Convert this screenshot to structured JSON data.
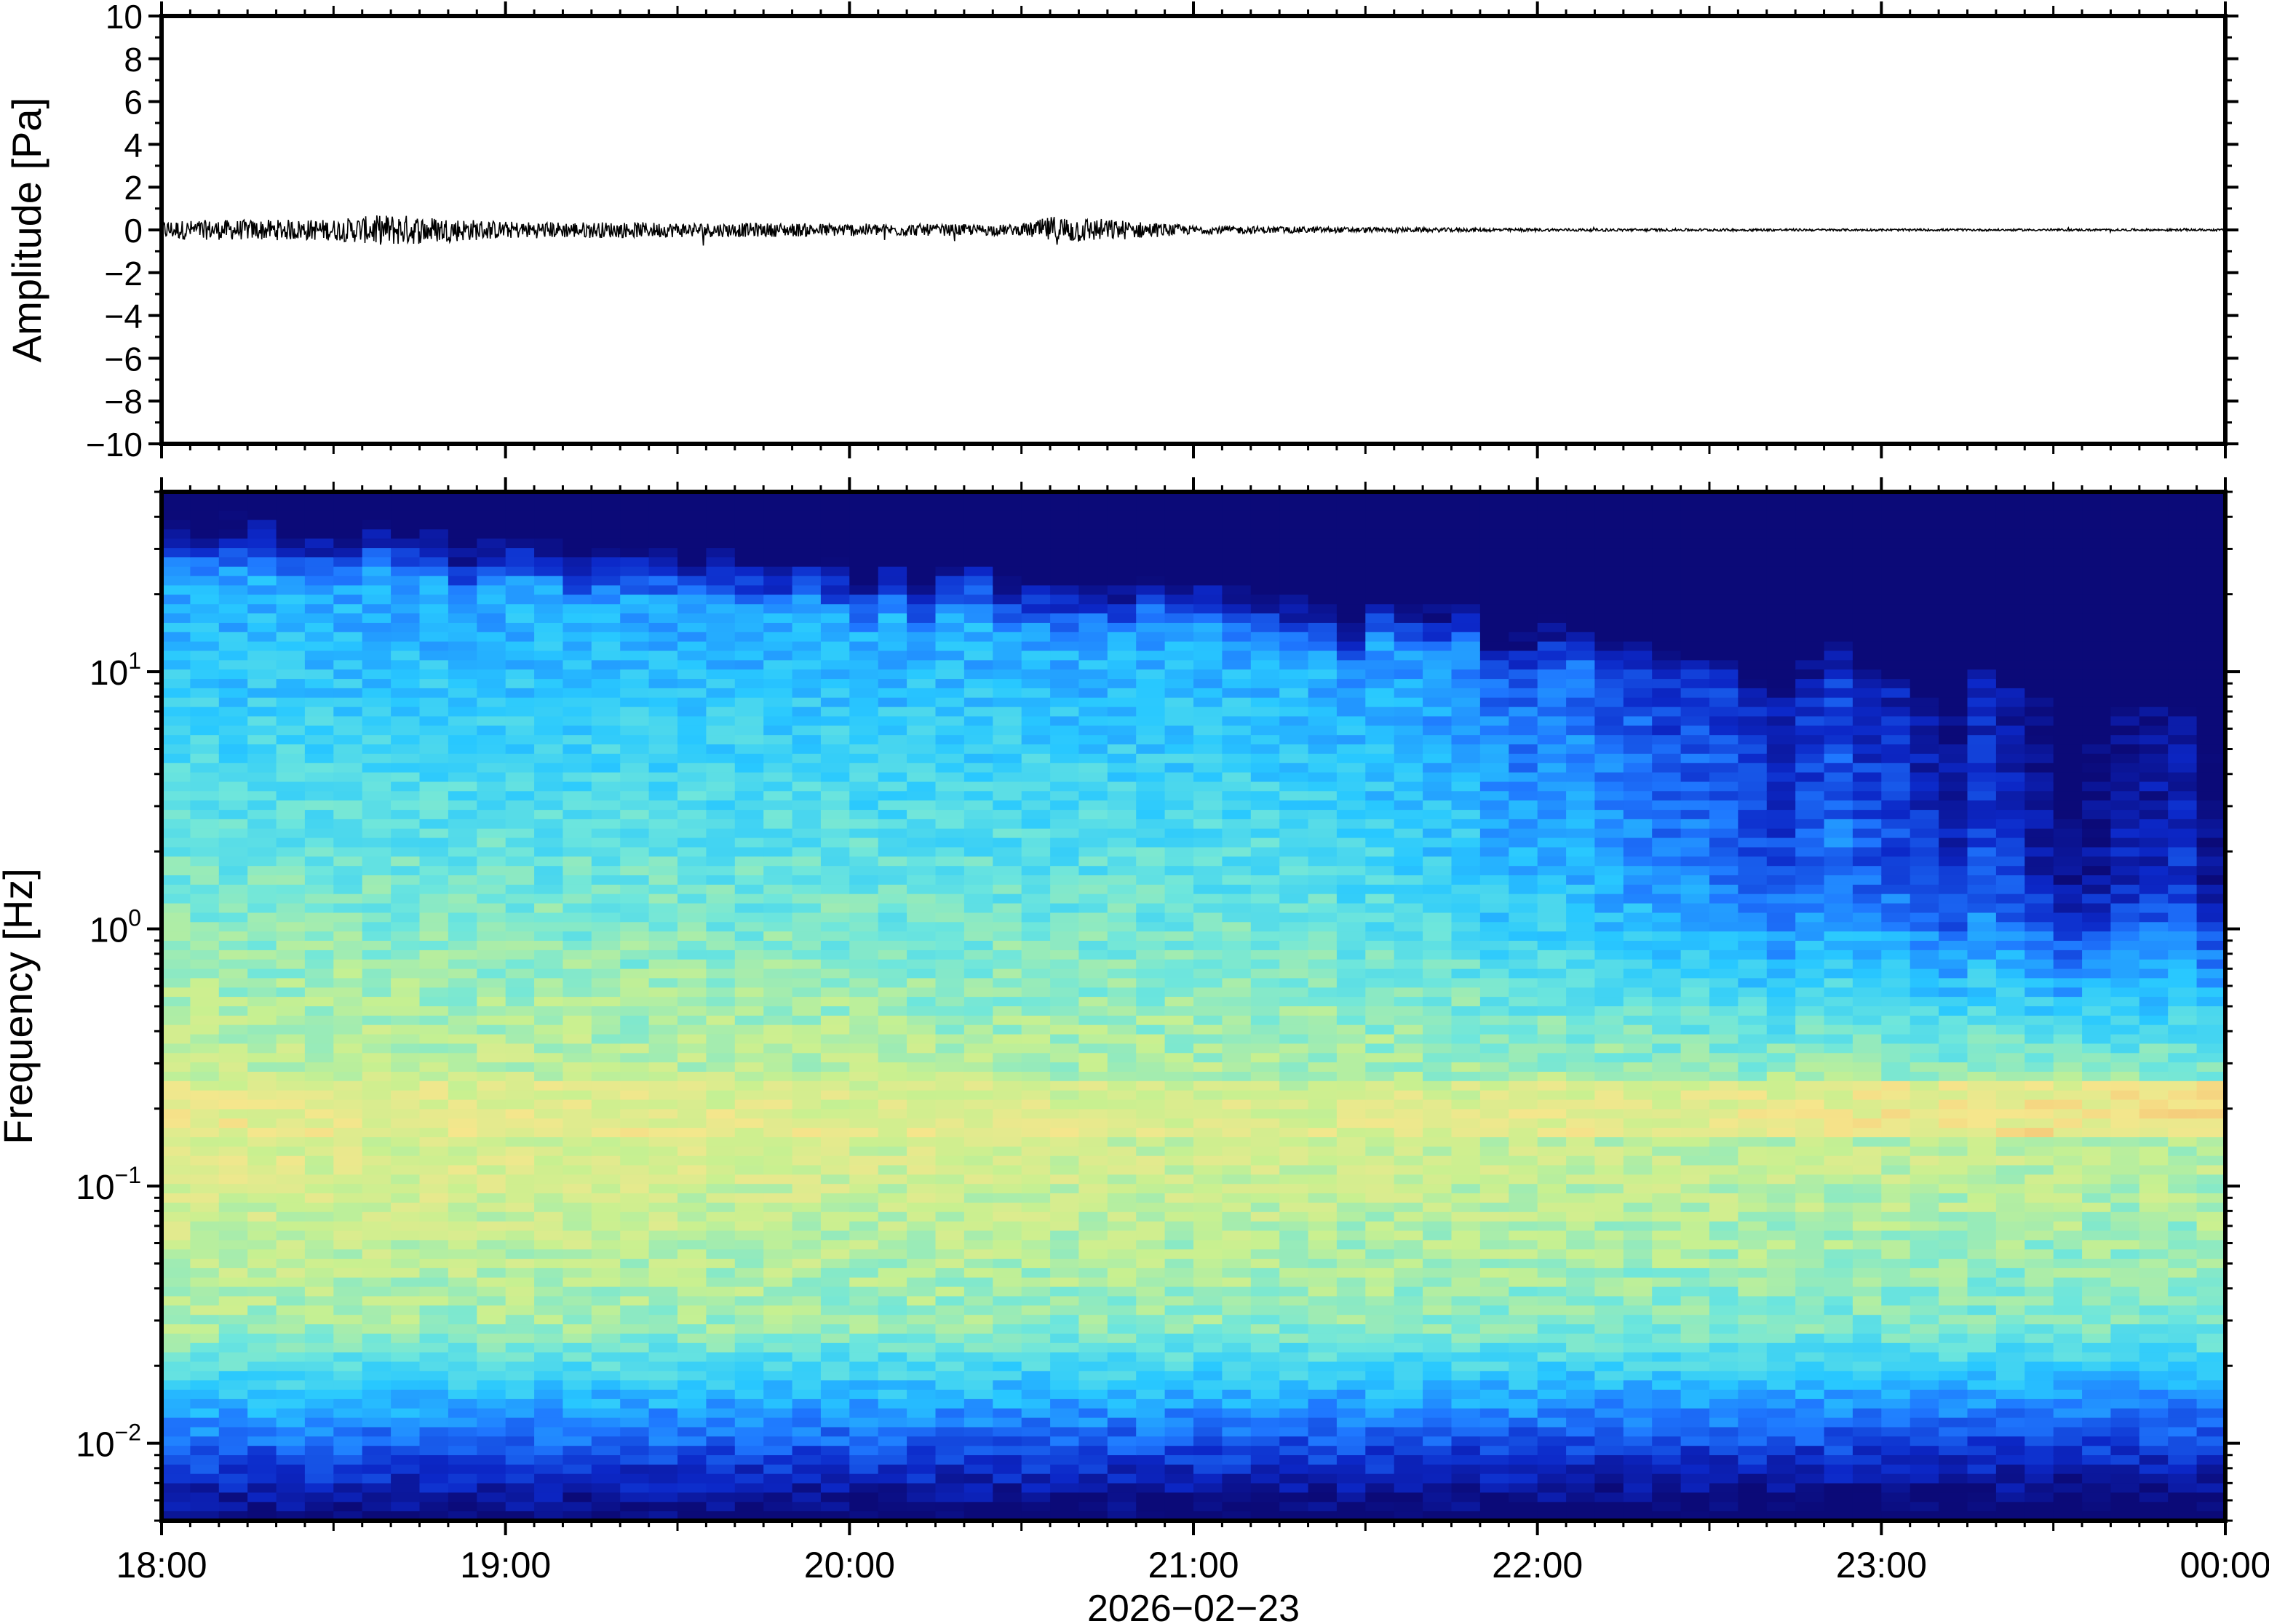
{
  "chart_data": [
    {
      "type": "line",
      "panel": "waveform",
      "ylabel": "Amplitude [Pa]",
      "ylim": [
        -10,
        10
      ],
      "yticks": [
        -10,
        -8,
        -6,
        -4,
        -2,
        0,
        2,
        4,
        6,
        8,
        10
      ],
      "ytick_labels": [
        "−10",
        "−8",
        "−6",
        "−4",
        "−2",
        "0",
        "2",
        "4",
        "6",
        "8",
        "10"
      ],
      "xlim": [
        "18:00",
        "24:00"
      ],
      "envelope": [
        {
          "x": "18:00",
          "y": 0.45
        },
        {
          "x": "18:30",
          "y": 0.5
        },
        {
          "x": "18:40",
          "y": 0.75
        },
        {
          "x": "19:00",
          "y": 0.4
        },
        {
          "x": "19:30",
          "y": 0.35
        },
        {
          "x": "20:00",
          "y": 0.3
        },
        {
          "x": "20:30",
          "y": 0.25
        },
        {
          "x": "20:36",
          "y": 0.7
        },
        {
          "x": "21:00",
          "y": 0.2
        },
        {
          "x": "21:30",
          "y": 0.12
        },
        {
          "x": "22:00",
          "y": 0.07
        },
        {
          "x": "23:00",
          "y": 0.05
        },
        {
          "x": "24:00",
          "y": 0.05
        }
      ],
      "grid": false
    },
    {
      "type": "heatmap",
      "panel": "spectrogram",
      "ylabel": "Frequency [Hz]",
      "yscale": "log",
      "ylim": [
        0.005,
        50
      ],
      "yticks": [
        {
          "base": "10",
          "exp": "−2",
          "value": 0.01
        },
        {
          "base": "10",
          "exp": "−1",
          "value": 0.1
        },
        {
          "base": "10",
          "exp": "0",
          "value": 1
        },
        {
          "base": "10",
          "exp": "1",
          "value": 10
        }
      ],
      "xlabel": "2026−02−23",
      "xticks": [
        "18:00",
        "19:00",
        "20:00",
        "21:00",
        "22:00",
        "23:00",
        "00:00"
      ],
      "colormap": [
        "#0b0a78",
        "#0c28c8",
        "#1f78ff",
        "#28c8ff",
        "#6ee6dc",
        "#c8f090",
        "#f5e68c",
        "#f5aa64"
      ],
      "grid": false
    }
  ]
}
